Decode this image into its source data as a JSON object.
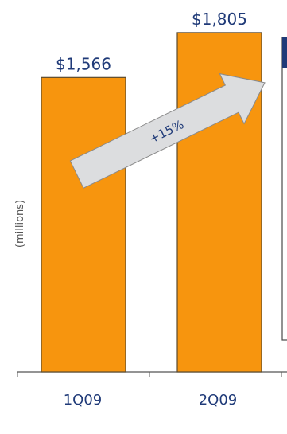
{
  "chart_data": {
    "type": "bar",
    "categories": [
      "1Q09",
      "2Q09"
    ],
    "values": [
      1566,
      1805
    ],
    "value_labels": [
      "$1,566",
      "$1,805"
    ],
    "ylabel": "(millions)",
    "annotation": "+15%",
    "ylim": [
      0,
      1830
    ],
    "grid": false,
    "colors": {
      "bar_fill": "#F7950E",
      "bar_stroke": "#5A4A30",
      "text": "#1F3A78",
      "arrow_fill": "#DCDDDF",
      "arrow_stroke": "#8A8A8A",
      "axis": "#555555",
      "panel_border": "#4A4A4A",
      "panel_header": "#1F3A78"
    }
  }
}
